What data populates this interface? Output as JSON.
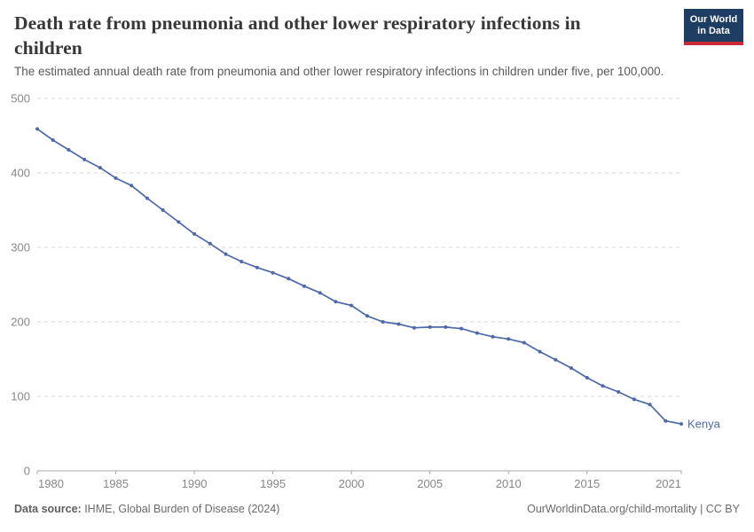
{
  "header": {
    "title": "Death rate from pneumonia and other lower respiratory infections in children",
    "subtitle": "The estimated annual death rate from pneumonia and other lower respiratory infections in children under five, per 100,000.",
    "logo": {
      "line1": "Our World",
      "line2": "in Data"
    }
  },
  "footer": {
    "source_label": "Data source:",
    "source_text": " IHME, Global Burden of Disease (2024)",
    "right_text": "OurWorldinData.org/child-mortality | CC BY"
  },
  "colors": {
    "line": "#4d69aa",
    "series_label": "#4d69aa",
    "grid": "#d8d8d8",
    "axis": "#a8a8a8",
    "tick_text": "#878787",
    "logo_navy": "#1d3d63",
    "logo_red": "#cc2936",
    "title_text": "#383838"
  },
  "chart_data": {
    "type": "line",
    "title": "Death rate from pneumonia and other lower respiratory infections in children",
    "xlabel": "",
    "ylabel": "",
    "ylim": [
      0,
      500
    ],
    "yticks": [
      0,
      100,
      200,
      300,
      400,
      500
    ],
    "xticks": [
      1980,
      1985,
      1990,
      1995,
      2000,
      2005,
      2010,
      2015,
      2021
    ],
    "grid": "horizontal-dashed",
    "legend_position": "line-end",
    "x": [
      1980,
      1981,
      1982,
      1983,
      1984,
      1985,
      1986,
      1987,
      1988,
      1989,
      1990,
      1991,
      1992,
      1993,
      1994,
      1995,
      1996,
      1997,
      1998,
      1999,
      2000,
      2001,
      2002,
      2003,
      2004,
      2005,
      2006,
      2007,
      2008,
      2009,
      2010,
      2011,
      2012,
      2013,
      2014,
      2015,
      2016,
      2017,
      2018,
      2019,
      2020,
      2021
    ],
    "series": [
      {
        "name": "Kenya",
        "values": [
          459,
          444,
          431,
          418,
          407,
          393,
          383,
          366,
          350,
          334,
          318,
          305,
          291,
          281,
          273,
          266,
          258,
          248,
          239,
          227,
          222,
          208,
          200,
          197,
          192,
          193,
          193,
          191,
          185,
          180,
          177,
          172,
          160,
          149,
          138,
          125,
          114,
          106,
          96,
          89,
          67,
          63
        ]
      }
    ]
  }
}
